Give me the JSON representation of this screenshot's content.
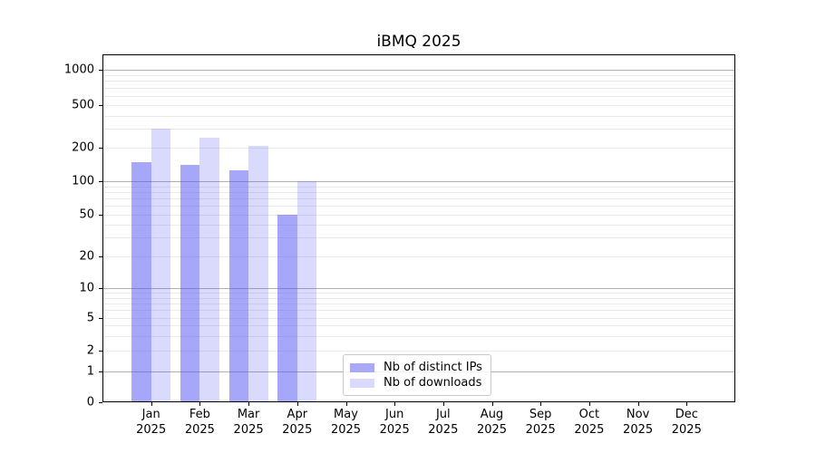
{
  "chart_data": {
    "type": "bar",
    "title": "iBMQ 2025",
    "categories": [
      "Jan",
      "Feb",
      "Mar",
      "Apr",
      "May",
      "Jun",
      "Jul",
      "Aug",
      "Sep",
      "Oct",
      "Nov",
      "Dec"
    ],
    "x_tick_second_line": "2025",
    "series": [
      {
        "name": "Nb of distinct IPs",
        "color": "rgba(80,80,245,0.50)",
        "legend_color": "#a9a9f8",
        "values": [
          150,
          140,
          125,
          50,
          0,
          0,
          0,
          0,
          0,
          0,
          0,
          0
        ]
      },
      {
        "name": "Nb of downloads",
        "color": "rgba(80,80,245,0.21)",
        "legend_color": "#d9d9fb",
        "values": [
          300,
          250,
          210,
          100,
          0,
          0,
          0,
          0,
          0,
          0,
          0,
          0
        ]
      }
    ],
    "y_ticks": [
      0,
      1,
      2,
      5,
      10,
      20,
      50,
      100,
      200,
      500,
      1000
    ],
    "yscale": "symlog",
    "ylim": [
      0,
      1400
    ],
    "xlabel": "",
    "ylabel": "",
    "grid": true,
    "legend_position": "lower center-left"
  },
  "legend": {
    "items": [
      {
        "label": "Nb of distinct IPs",
        "color": "#a9a9f8"
      },
      {
        "label": "Nb of downloads",
        "color": "#d9d9fb"
      }
    ]
  },
  "colors": {
    "grid_major": "#b0b0b0",
    "grid_minor": "#eaeaea",
    "spine": "#000000",
    "text": "#000000"
  }
}
